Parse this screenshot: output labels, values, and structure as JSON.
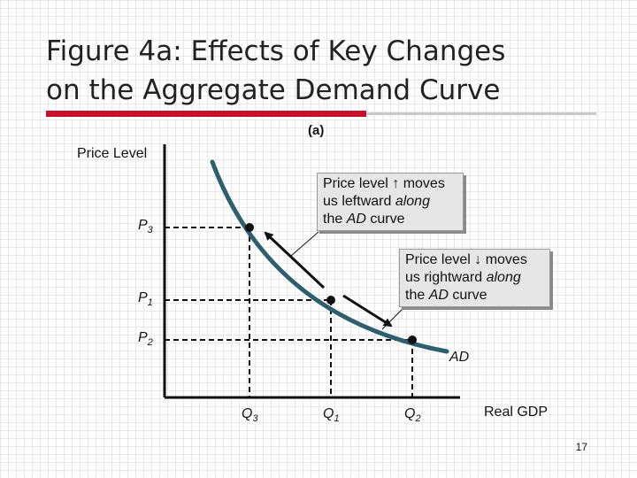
{
  "slide": {
    "title_line1": "Figure 4a:  Effects of Key Changes",
    "title_line2": "on the Aggregate Demand Curve",
    "page_number": "17",
    "accent_color": "#c8102e",
    "curve_color": "#2f5f6e"
  },
  "diagram": {
    "panel_label": "(a)",
    "y_axis_label": "Price Level",
    "x_axis_label": "Real GDP",
    "curve_label": "AD",
    "price_levels": [
      {
        "letter": "P",
        "sub": "3"
      },
      {
        "letter": "P",
        "sub": "1"
      },
      {
        "letter": "P",
        "sub": "2"
      }
    ],
    "quantities": [
      {
        "letter": "Q",
        "sub": "3"
      },
      {
        "letter": "Q",
        "sub": "1"
      },
      {
        "letter": "Q",
        "sub": "2"
      }
    ],
    "callout_up": {
      "line1": "Price level ↑ moves",
      "line2_a": "us leftward ",
      "line2_b": "along",
      "line3_a": "the ",
      "line3_b": "AD",
      "line3_c": " curve"
    },
    "callout_down": {
      "line1": "Price level ↓ moves",
      "line2_a": "us rightward ",
      "line2_b": "along",
      "line3_a": "the ",
      "line3_b": "AD",
      "line3_c": " curve"
    }
  }
}
